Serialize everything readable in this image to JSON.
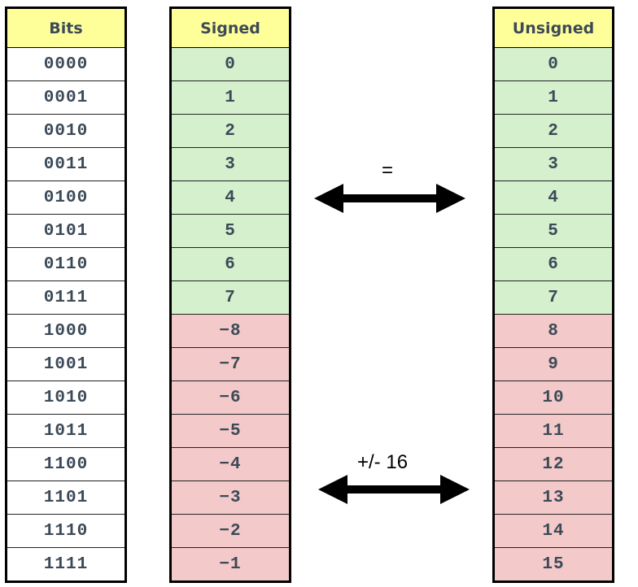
{
  "columns": {
    "bits": {
      "header": "Bits",
      "cells": [
        "0000",
        "0001",
        "0010",
        "0011",
        "0100",
        "0101",
        "0110",
        "0111",
        "1000",
        "1001",
        "1010",
        "1011",
        "1100",
        "1101",
        "1110",
        "1111"
      ]
    },
    "signed": {
      "header": "Signed",
      "cells": [
        "0",
        "1",
        "2",
        "3",
        "4",
        "5",
        "6",
        "7",
        "−8",
        "−7",
        "−6",
        "−5",
        "−4",
        "−3",
        "−2",
        "−1"
      ]
    },
    "unsigned": {
      "header": "Unsigned",
      "cells": [
        "0",
        "1",
        "2",
        "3",
        "4",
        "5",
        "6",
        "7",
        "8",
        "9",
        "10",
        "11",
        "12",
        "13",
        "14",
        "15"
      ]
    }
  },
  "arrows": {
    "equal_label": "=",
    "offset_label": "+/- 16"
  },
  "colors": {
    "header": "#ffff99",
    "nonnegative": "#d5f0cd",
    "negative": "#f3c9c9",
    "text": "#3c4a58"
  }
}
